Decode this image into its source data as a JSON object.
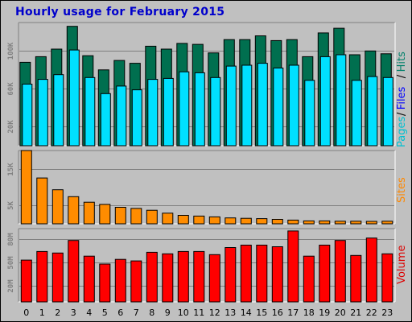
{
  "title": "Hourly usage for February 2015",
  "chart_data": [
    {
      "type": "bar",
      "panel": "pages-files-hits",
      "legend": [
        {
          "name": "Pages",
          "color": "#00c0d0"
        },
        {
          "name": "/",
          "color": "#000000"
        },
        {
          "name": "Files",
          "color": "#0000ff"
        },
        {
          "name": "/",
          "color": "#000000"
        },
        {
          "name": "Hits",
          "color": "#00806a"
        }
      ],
      "categories": [
        "0",
        "1",
        "2",
        "3",
        "4",
        "5",
        "6",
        "7",
        "8",
        "9",
        "10",
        "11",
        "12",
        "13",
        "14",
        "15",
        "16",
        "17",
        "18",
        "19",
        "20",
        "21",
        "22",
        "23"
      ],
      "series": [
        {
          "name": "Hits",
          "color": "#006f4f",
          "values": [
            88000,
            94000,
            102000,
            126000,
            95000,
            80000,
            90000,
            87000,
            105000,
            102000,
            108000,
            107000,
            98000,
            112000,
            112000,
            116000,
            111000,
            112000,
            94000,
            119000,
            124000,
            96000,
            100000,
            97000
          ]
        },
        {
          "name": "Files",
          "color": "#00e0ff",
          "values": [
            65000,
            70000,
            75000,
            101000,
            72000,
            55000,
            63000,
            59000,
            70000,
            71000,
            78000,
            77000,
            72000,
            84000,
            85000,
            87000,
            82000,
            85000,
            69000,
            94000,
            96000,
            69000,
            73000,
            72000
          ]
        }
      ],
      "yticks": [
        {
          "v": 20000,
          "label": "20K"
        },
        {
          "v": 60000,
          "label": "60K"
        },
        {
          "v": 100000,
          "label": "100K"
        }
      ],
      "ylim": [
        0,
        130000
      ]
    },
    {
      "type": "bar",
      "panel": "sites",
      "legend": [
        {
          "name": "Sites",
          "color": "#ff8800"
        }
      ],
      "categories": [
        "0",
        "1",
        "2",
        "3",
        "4",
        "5",
        "6",
        "7",
        "8",
        "9",
        "10",
        "11",
        "12",
        "13",
        "14",
        "15",
        "16",
        "17",
        "18",
        "19",
        "20",
        "21",
        "22",
        "23"
      ],
      "series": [
        {
          "name": "Sites",
          "color": "#ff8c00",
          "values": [
            20000,
            12500,
            9300,
            7400,
            5900,
            5300,
            4500,
            4200,
            3700,
            2900,
            2300,
            2100,
            1900,
            1600,
            1500,
            1400,
            1200,
            1000,
            800,
            800,
            700,
            700,
            650,
            700
          ]
        }
      ],
      "yticks": [
        {
          "v": 5000,
          "label": "5K"
        },
        {
          "v": 15000,
          "label": "15K"
        }
      ],
      "ylim": [
        0,
        20000
      ]
    },
    {
      "type": "bar",
      "panel": "volume",
      "legend": [
        {
          "name": "Volume",
          "color": "#dd0000"
        }
      ],
      "categories": [
        "0",
        "1",
        "2",
        "3",
        "4",
        "5",
        "6",
        "7",
        "8",
        "9",
        "10",
        "11",
        "12",
        "13",
        "14",
        "15",
        "16",
        "17",
        "18",
        "19",
        "20",
        "21",
        "22",
        "23"
      ],
      "series": [
        {
          "name": "Volume",
          "color": "#ff0000",
          "values": [
            53,
            64,
            62,
            78,
            58,
            48,
            54,
            52,
            63,
            61,
            64,
            64,
            60,
            69,
            72,
            72,
            70,
            90,
            58,
            72,
            78,
            59,
            81,
            61
          ]
        }
      ],
      "yticks": [
        {
          "v": 20,
          "label": "20M"
        },
        {
          "v": 50,
          "label": "50M"
        },
        {
          "v": 80,
          "label": "80M"
        }
      ],
      "ylim": [
        0,
        93
      ]
    }
  ]
}
